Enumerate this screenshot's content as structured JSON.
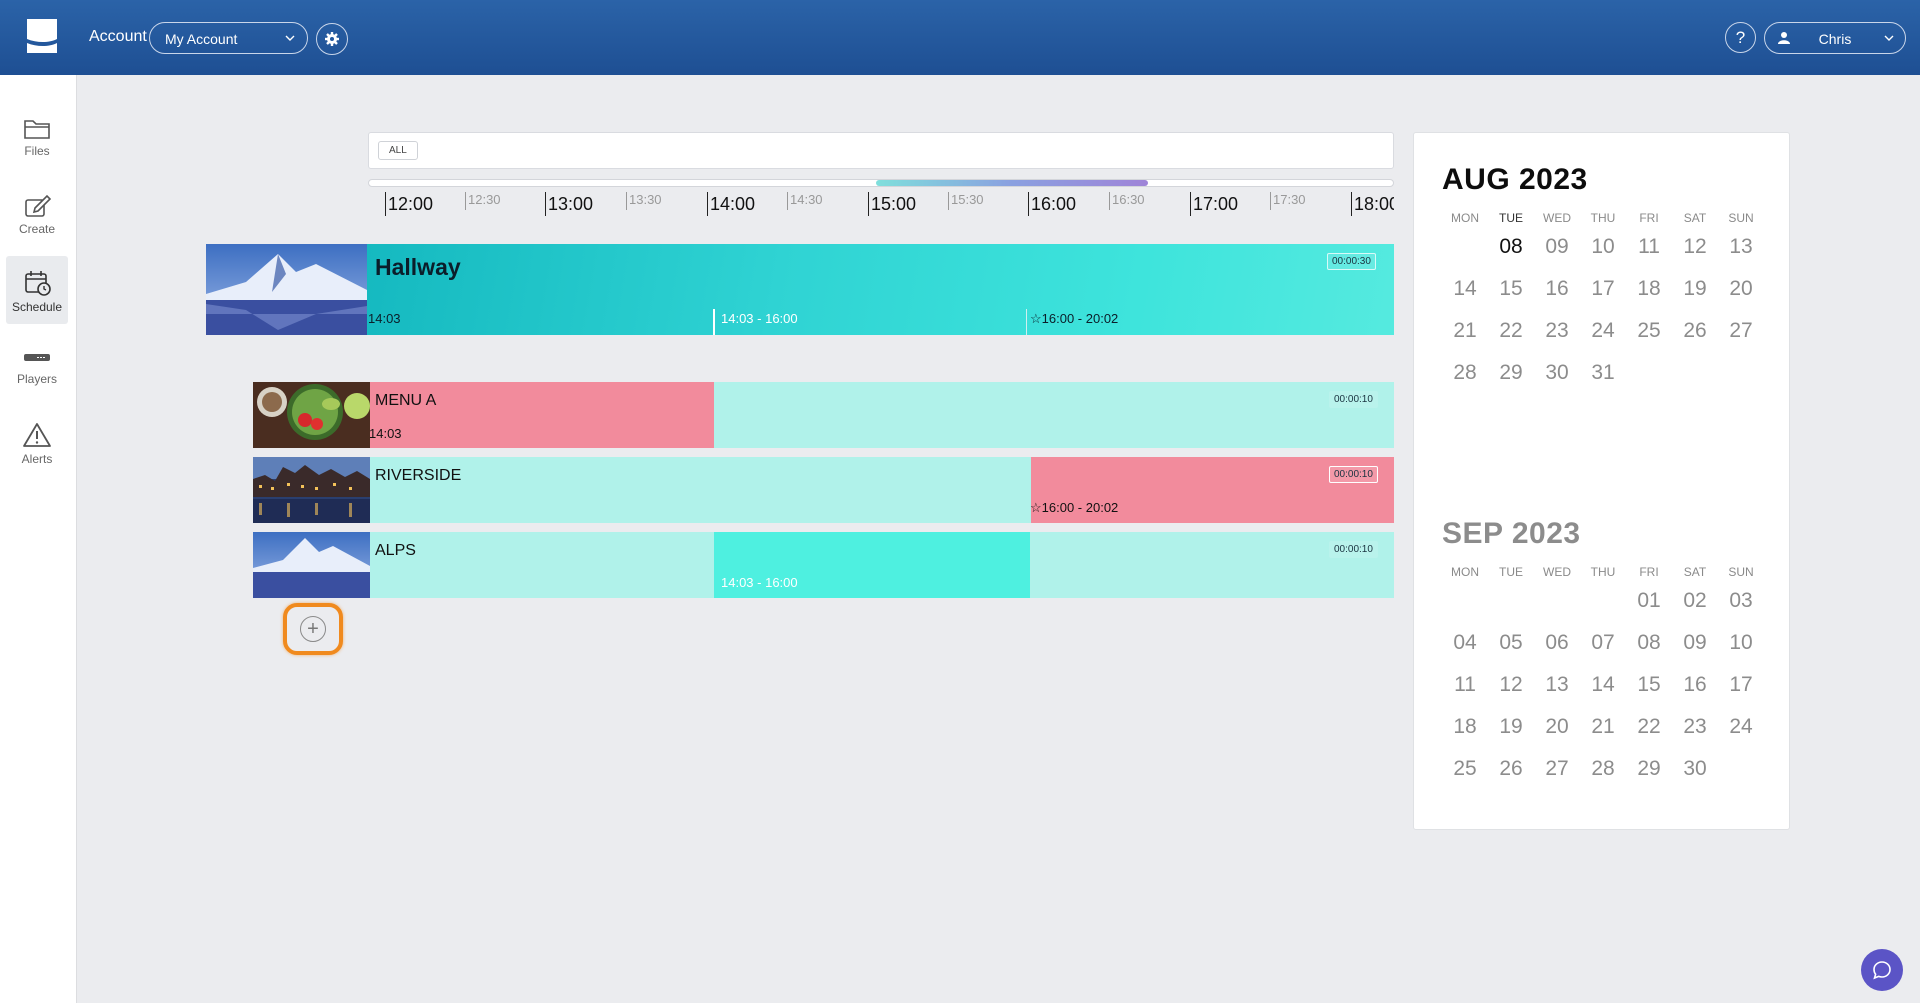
{
  "header": {
    "account_label": "Account",
    "account_select": "My Account",
    "help_label": "?",
    "user_name": "Chris"
  },
  "sidebar": {
    "items": [
      {
        "label": "Files",
        "icon": "folder-icon"
      },
      {
        "label": "Create",
        "icon": "edit-icon"
      },
      {
        "label": "Schedule",
        "icon": "calendar-clock-icon",
        "active": true
      },
      {
        "label": "Players",
        "icon": "player-device-icon"
      },
      {
        "label": "Alerts",
        "icon": "warning-icon"
      }
    ]
  },
  "timeline": {
    "filter_chip": "ALL",
    "ticks": [
      "12:00",
      "12:30",
      "13:00",
      "13:30",
      "14:00",
      "14:30",
      "15:00",
      "15:30",
      "16:00",
      "16:30",
      "17:00",
      "17:30",
      "18:00"
    ]
  },
  "hallway": {
    "title": "Hallway",
    "duration": "00:00:30",
    "seg1": "14:03",
    "seg2": "14:03 - 16:00",
    "seg3": "16:00 - 20:02"
  },
  "rows": [
    {
      "title": "MENU A",
      "duration": "00:00:10",
      "time": "14:03"
    },
    {
      "title": "RIVERSIDE",
      "duration": "00:00:10",
      "time": "16:00 - 20:02"
    },
    {
      "title": "ALPS",
      "duration": "00:00:10",
      "time": "14:03 - 16:00"
    }
  ],
  "calendar": {
    "weekdays": [
      "MON",
      "TUE",
      "WED",
      "THU",
      "FRI",
      "SAT",
      "SUN"
    ],
    "aug": {
      "title": "AUG 2023",
      "days": [
        "",
        "08",
        "09",
        "10",
        "11",
        "12",
        "13",
        "14",
        "15",
        "16",
        "17",
        "18",
        "19",
        "20",
        "21",
        "22",
        "23",
        "24",
        "25",
        "26",
        "27",
        "28",
        "29",
        "30",
        "31"
      ]
    },
    "sep": {
      "title": "SEP 2023",
      "days": [
        "",
        "",
        "",
        "",
        "01",
        "02",
        "03",
        "04",
        "05",
        "06",
        "07",
        "08",
        "09",
        "10",
        "11",
        "12",
        "13",
        "14",
        "15",
        "16",
        "17",
        "18",
        "19",
        "20",
        "21",
        "22",
        "23",
        "24",
        "25",
        "26",
        "27",
        "28",
        "29",
        "30"
      ]
    }
  },
  "colors": {
    "header_blue": "#2459a0",
    "cyan_block": "#b0f2ea",
    "bright_cyan_block": "#4ef0e0",
    "pink_block": "#f28b9c",
    "highlight_orange": "#f08a1e",
    "chat_purple": "#5b54c6"
  }
}
